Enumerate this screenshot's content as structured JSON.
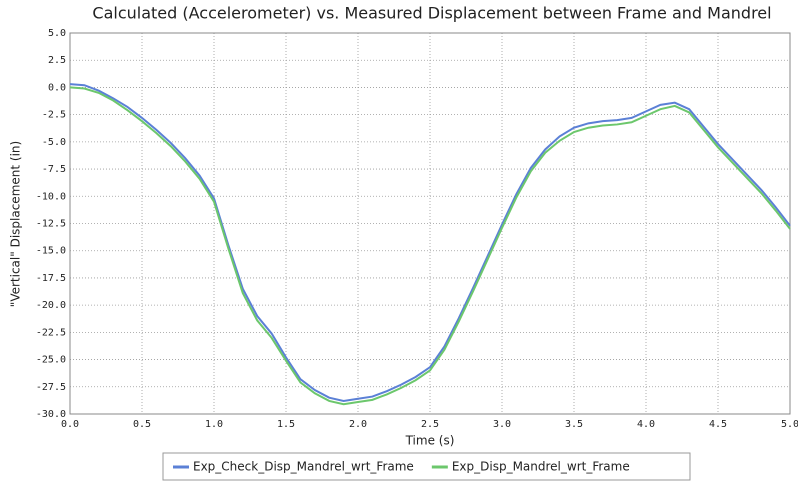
{
  "chart_data": {
    "type": "line",
    "title": "Calculated (Accelerometer) vs. Measured Displacement between Frame and Mandrel",
    "xlabel": "Time (s)",
    "ylabel": "\"Vertical\" Displacement (in)",
    "x": [
      0.0,
      0.1,
      0.2,
      0.3,
      0.4,
      0.5,
      0.6,
      0.7,
      0.8,
      0.9,
      1.0,
      1.1,
      1.2,
      1.3,
      1.4,
      1.5,
      1.6,
      1.7,
      1.8,
      1.9,
      2.0,
      2.1,
      2.2,
      2.3,
      2.4,
      2.5,
      2.6,
      2.7,
      2.8,
      2.9,
      3.0,
      3.1,
      3.2,
      3.3,
      3.4,
      3.5,
      3.6,
      3.7,
      3.8,
      3.9,
      4.0,
      4.1,
      4.2,
      4.3,
      4.4,
      4.5,
      4.6,
      4.7,
      4.8,
      4.9,
      5.0
    ],
    "series": [
      {
        "name": "Exp_Check_Disp_Mandrel_wrt_Frame",
        "color": "#5b80d6",
        "values": [
          0.3,
          0.2,
          -0.3,
          -1.0,
          -1.8,
          -2.8,
          -3.9,
          -5.1,
          -6.5,
          -8.1,
          -10.2,
          -14.5,
          -18.5,
          -21.0,
          -22.6,
          -24.8,
          -26.8,
          -27.8,
          -28.5,
          -28.8,
          -28.6,
          -28.4,
          -27.9,
          -27.3,
          -26.6,
          -25.7,
          -23.8,
          -21.2,
          -18.4,
          -15.5,
          -12.6,
          -9.8,
          -7.4,
          -5.7,
          -4.5,
          -3.7,
          -3.3,
          -3.1,
          -3.0,
          -2.8,
          -2.2,
          -1.6,
          -1.4,
          -2.0,
          -3.6,
          -5.2,
          -6.6,
          -8.0,
          -9.4,
          -11.0,
          -12.7
        ]
      },
      {
        "name": "Exp_Disp_Mandrel_wrt_Frame",
        "color": "#6cc76c",
        "values": [
          0.0,
          -0.1,
          -0.5,
          -1.2,
          -2.1,
          -3.1,
          -4.2,
          -5.4,
          -6.8,
          -8.4,
          -10.5,
          -14.8,
          -18.9,
          -21.4,
          -23.0,
          -25.1,
          -27.1,
          -28.1,
          -28.8,
          -29.1,
          -28.9,
          -28.7,
          -28.2,
          -27.6,
          -26.9,
          -26.0,
          -24.1,
          -21.5,
          -18.7,
          -15.8,
          -12.9,
          -10.1,
          -7.7,
          -6.0,
          -4.9,
          -4.1,
          -3.7,
          -3.5,
          -3.4,
          -3.2,
          -2.6,
          -2.0,
          -1.7,
          -2.3,
          -3.9,
          -5.5,
          -6.9,
          -8.3,
          -9.7,
          -11.3,
          -13.0
        ]
      }
    ],
    "xlim": [
      0.0,
      5.0
    ],
    "xticks": [
      {
        "value": 0,
        "label": "0.0"
      },
      0.5,
      {
        "value": 1,
        "label": "1.0"
      },
      1.5,
      {
        "value": 2,
        "label": "2.0"
      },
      2.5,
      {
        "value": 3,
        "label": "3.0"
      },
      3.5,
      {
        "value": 4,
        "label": "4.0"
      },
      4.5,
      {
        "value": 5,
        "label": "5.0"
      }
    ],
    "ylim": [
      -30.0,
      5.0
    ],
    "yticks": [
      {
        "value": 5,
        "label": "5.0"
      },
      2.5,
      {
        "value": 0,
        "label": "0.0"
      },
      -2.5,
      {
        "value": -5,
        "label": "-5.0"
      },
      -7.5,
      {
        "value": -10,
        "label": "-10.0"
      },
      -12.5,
      {
        "value": -15,
        "label": "-15.0"
      },
      -17.5,
      {
        "value": -20,
        "label": "-20.0"
      },
      -22.5,
      {
        "value": -25,
        "label": "-25.0"
      },
      -27.5,
      {
        "value": -30,
        "label": "-30.0"
      }
    ],
    "grid": true,
    "legend": "bottom"
  }
}
